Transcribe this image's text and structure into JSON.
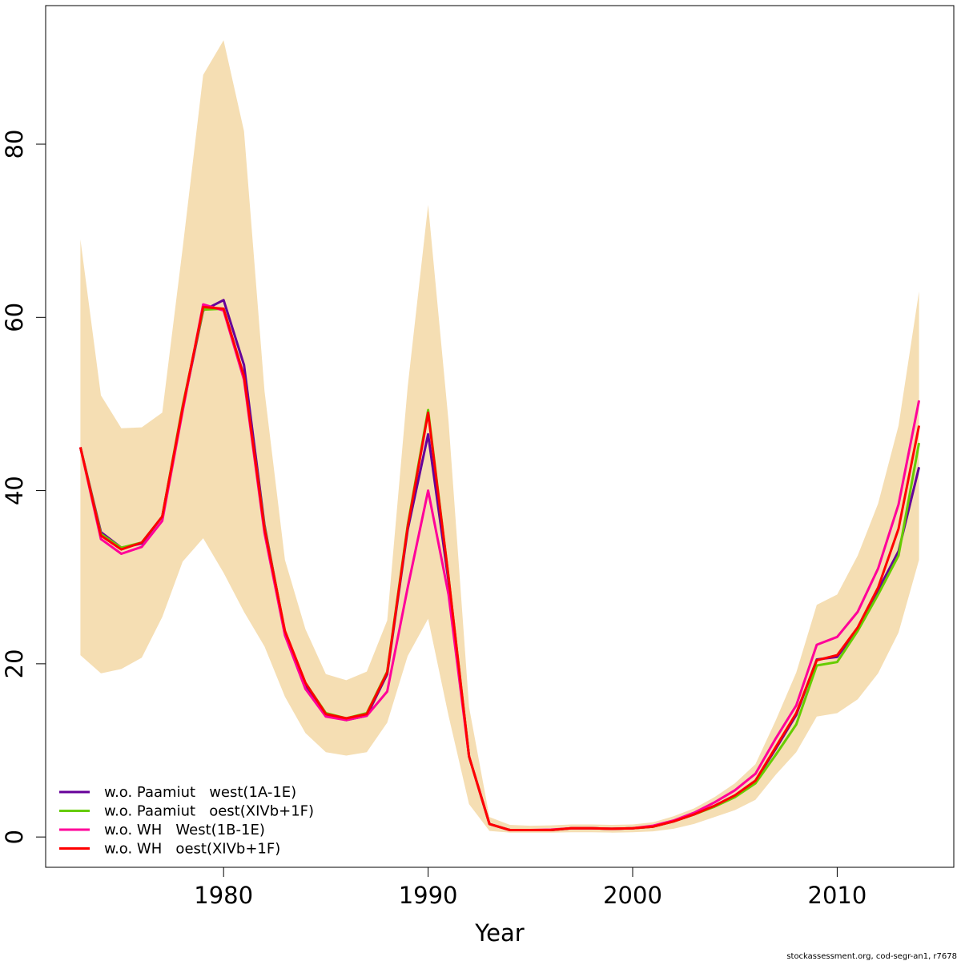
{
  "chart_data": {
    "type": "line",
    "title": "",
    "xlabel": "Year",
    "ylabel": "",
    "xlim": [
      1971.3,
      2015.7
    ],
    "ylim": [
      -3.5,
      96
    ],
    "x_ticks": [
      1980,
      1990,
      2000,
      2010
    ],
    "y_ticks": [
      0,
      20,
      40,
      60,
      80
    ],
    "grid": false,
    "legend_position": "bottom-left",
    "x": [
      1973,
      1974,
      1975,
      1976,
      1977,
      1978,
      1979,
      1980,
      1981,
      1982,
      1983,
      1984,
      1985,
      1986,
      1987,
      1988,
      1989,
      1990,
      1991,
      1992,
      1993,
      1994,
      1995,
      1996,
      1997,
      1998,
      1999,
      2000,
      2001,
      2002,
      2003,
      2004,
      2005,
      2006,
      2007,
      2008,
      2009,
      2010,
      2011,
      2012,
      2013,
      2014
    ],
    "band": {
      "color": "#f5deb3",
      "upper": [
        69,
        51,
        47.2,
        47.3,
        49,
        68,
        88,
        92,
        81.5,
        51.5,
        32,
        24,
        18.8,
        18.1,
        19.1,
        25,
        52,
        73,
        48,
        15,
        2.3,
        1.4,
        1.3,
        1.35,
        1.45,
        1.45,
        1.4,
        1.45,
        1.7,
        2.4,
        3.3,
        4.6,
        6.2,
        8.4,
        13.5,
        19,
        26.8,
        28,
        32.5,
        38.5,
        47.5,
        63
      ],
      "lower": [
        21,
        18.9,
        19.4,
        20.7,
        25.4,
        31.8,
        34.5,
        30.5,
        26,
        22,
        16.2,
        12,
        9.8,
        9.4,
        9.8,
        13.2,
        20.9,
        25.2,
        14,
        3.8,
        0.7,
        0.5,
        0.5,
        0.5,
        0.55,
        0.55,
        0.5,
        0.55,
        0.65,
        0.95,
        1.5,
        2.3,
        3.1,
        4.3,
        7.2,
        9.8,
        13.9,
        14.3,
        15.9,
        18.9,
        23.6,
        32
      ]
    },
    "series": [
      {
        "name": "w.o. Paamiut   west(1A-1E)",
        "color": "#660099",
        "values": [
          45,
          35.2,
          33.4,
          33.9,
          37,
          49.5,
          60.8,
          62,
          54.5,
          36,
          23.5,
          17.5,
          14.1,
          13.5,
          14,
          18.8,
          35.5,
          46.5,
          29.5,
          9.3,
          1.5,
          0.8,
          0.8,
          0.8,
          1,
          1,
          0.95,
          1,
          1.2,
          1.8,
          2.6,
          3.6,
          4.8,
          6.5,
          10.2,
          14.1,
          20.5,
          20.8,
          24,
          28.5,
          33,
          42.7
        ]
      },
      {
        "name": "w.o. Paamiut   oest(XIVb+1F)",
        "color": "#66cc00",
        "values": [
          45,
          35,
          33.4,
          34,
          37,
          49.8,
          60.9,
          61,
          53,
          35.8,
          23.7,
          17.8,
          14.3,
          13.7,
          14.3,
          19.1,
          36,
          49.3,
          30,
          9.3,
          1.5,
          0.8,
          0.8,
          0.8,
          1,
          1,
          0.95,
          1,
          1.2,
          1.8,
          2.6,
          3.5,
          4.6,
          6.2,
          9.5,
          13,
          19.8,
          20.2,
          23.8,
          28,
          32.5,
          45.5
        ]
      },
      {
        "name": "w.o. WH   West(1B-1E)",
        "color": "#ff0099",
        "values": [
          45,
          34.4,
          32.7,
          33.5,
          36.5,
          49.2,
          61.5,
          60.8,
          52.8,
          35.1,
          23.3,
          17.1,
          13.9,
          13.5,
          14,
          16.8,
          28.8,
          40,
          28,
          9.3,
          1.5,
          0.8,
          0.8,
          0.85,
          1,
          1,
          0.95,
          1,
          1.3,
          1.9,
          2.8,
          4,
          5.4,
          7.3,
          11.4,
          15.2,
          22.2,
          23.1,
          26,
          31,
          38.4,
          50.4
        ]
      },
      {
        "name": "w.o. WH   oest(XIVb+1F)",
        "color": "#ff0000",
        "values": [
          45,
          34.8,
          33.2,
          34,
          37,
          49.6,
          61.2,
          61,
          53.2,
          35.6,
          23.8,
          17.8,
          14.2,
          13.7,
          14.2,
          19,
          35.8,
          49,
          30,
          9.3,
          1.5,
          0.8,
          0.8,
          0.8,
          1,
          1,
          0.95,
          1,
          1.2,
          1.8,
          2.6,
          3.6,
          4.8,
          6.5,
          10.4,
          14.3,
          20.4,
          21,
          24.2,
          28.8,
          35.6,
          47.5
        ]
      }
    ]
  },
  "footer_note": "stockassessment.org, cod-segr-an1, r7678"
}
